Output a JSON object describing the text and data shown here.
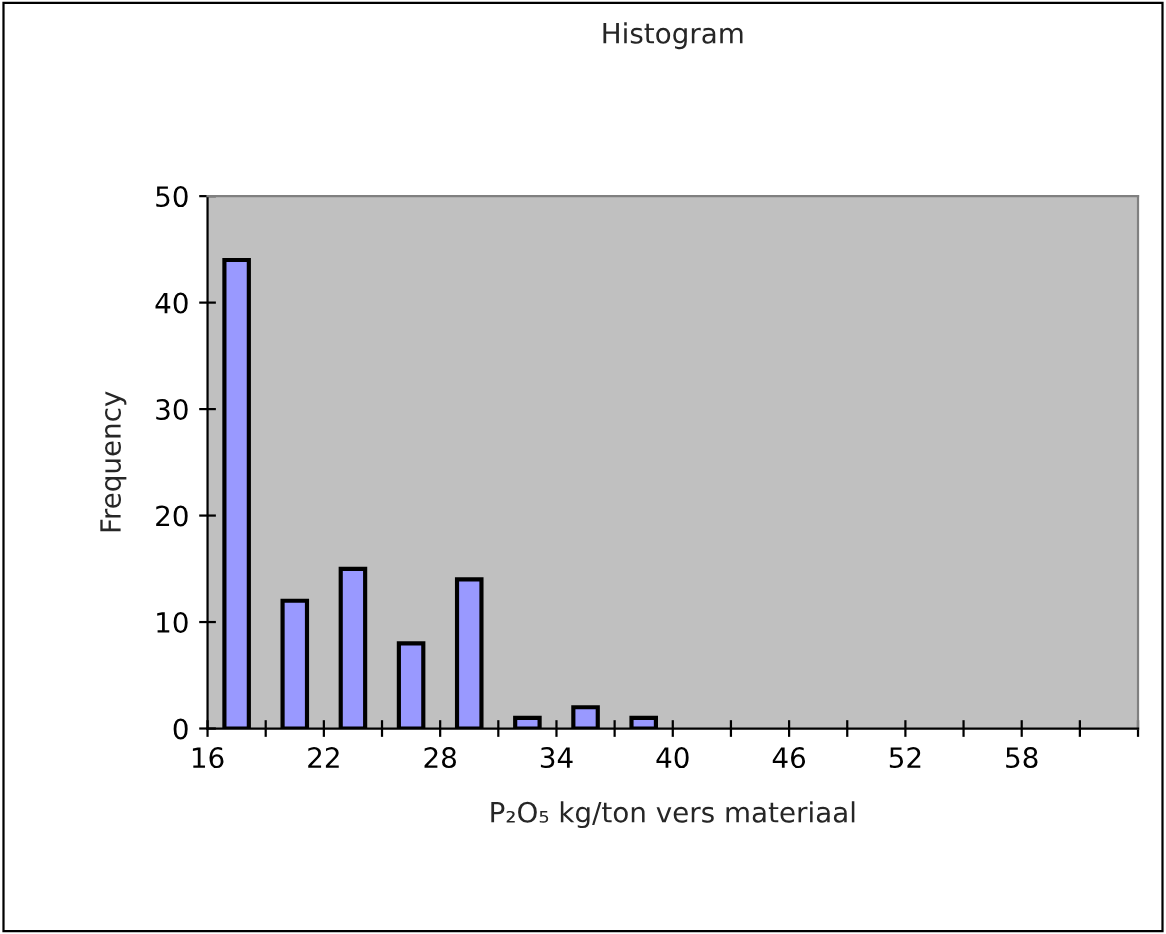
{
  "chart_data": {
    "type": "histogram",
    "title": "Histogram",
    "xlabel": "P₂O₅ kg/ton vers materiaal",
    "ylabel": "Frequency",
    "bins": [
      16,
      19,
      22,
      25,
      28,
      31,
      34,
      37,
      40
    ],
    "values": [
      44,
      12,
      15,
      8,
      14,
      1,
      2,
      1
    ],
    "color": "#9999ff",
    "xlim": [
      16,
      64
    ],
    "xticks": [
      16,
      {
        "value": 19,
        "label": null
      },
      22,
      {
        "value": 25,
        "label": null
      },
      28,
      {
        "value": 31,
        "label": null
      },
      34,
      {
        "value": 37,
        "label": null
      },
      40,
      {
        "value": 43,
        "label": null
      },
      46,
      {
        "value": 49,
        "label": null
      },
      52,
      {
        "value": 55,
        "label": null
      },
      58,
      {
        "value": 61,
        "label": null
      },
      {
        "value": 64,
        "label": null
      }
    ],
    "ylim": [
      0,
      50
    ],
    "yticks": [
      0,
      10,
      20,
      30,
      40,
      50
    ],
    "grid": false,
    "legend": false
  }
}
